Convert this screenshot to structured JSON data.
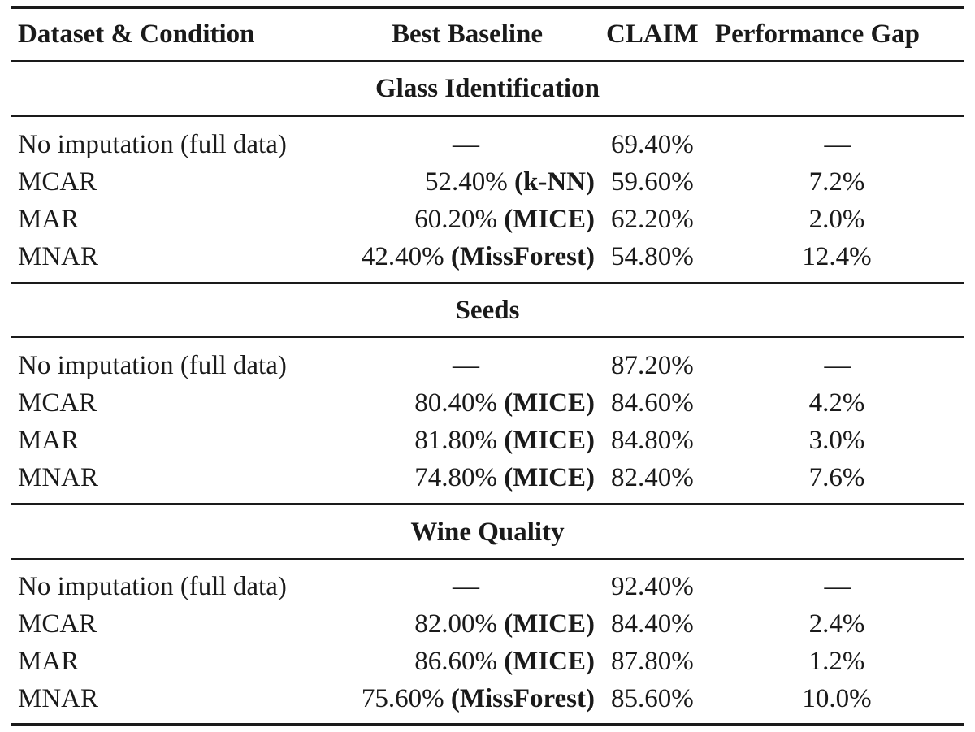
{
  "table": {
    "headers": {
      "condition": "Dataset & Condition",
      "baseline": "Best Baseline",
      "claim": "CLAIM",
      "gap": "Performance Gap"
    },
    "sections": [
      {
        "title": "Glass Identification",
        "rows": [
          {
            "condition": "No imputation (full data)",
            "baseline_value": "—",
            "baseline_method": "",
            "claim": "69.40%",
            "gap": "—"
          },
          {
            "condition": "MCAR",
            "baseline_value": "52.40%",
            "baseline_method": "(k-NN)",
            "claim": "59.60%",
            "gap": "7.2%"
          },
          {
            "condition": "MAR",
            "baseline_value": "60.20%",
            "baseline_method": "(MICE)",
            "claim": "62.20%",
            "gap": "2.0%"
          },
          {
            "condition": "MNAR",
            "baseline_value": "42.40%",
            "baseline_method": "(MissForest)",
            "claim": "54.80%",
            "gap": "12.4%"
          }
        ]
      },
      {
        "title": "Seeds",
        "rows": [
          {
            "condition": "No imputation (full data)",
            "baseline_value": "—",
            "baseline_method": "",
            "claim": "87.20%",
            "gap": "—"
          },
          {
            "condition": "MCAR",
            "baseline_value": "80.40%",
            "baseline_method": "(MICE)",
            "claim": "84.60%",
            "gap": "4.2%"
          },
          {
            "condition": "MAR",
            "baseline_value": "81.80%",
            "baseline_method": "(MICE)",
            "claim": "84.80%",
            "gap": "3.0%"
          },
          {
            "condition": "MNAR",
            "baseline_value": "74.80%",
            "baseline_method": "(MICE)",
            "claim": "82.40%",
            "gap": "7.6%"
          }
        ]
      },
      {
        "title": "Wine Quality",
        "rows": [
          {
            "condition": "No imputation (full data)",
            "baseline_value": "—",
            "baseline_method": "",
            "claim": "92.40%",
            "gap": "—"
          },
          {
            "condition": "MCAR",
            "baseline_value": "82.00%",
            "baseline_method": "(MICE)",
            "claim": "84.40%",
            "gap": "2.4%"
          },
          {
            "condition": "MAR",
            "baseline_value": "86.60%",
            "baseline_method": "(MICE)",
            "claim": "87.80%",
            "gap": "1.2%"
          },
          {
            "condition": "MNAR",
            "baseline_value": "75.60%",
            "baseline_method": "(MissForest)",
            "claim": "85.60%",
            "gap": "10.0%"
          }
        ]
      }
    ]
  }
}
